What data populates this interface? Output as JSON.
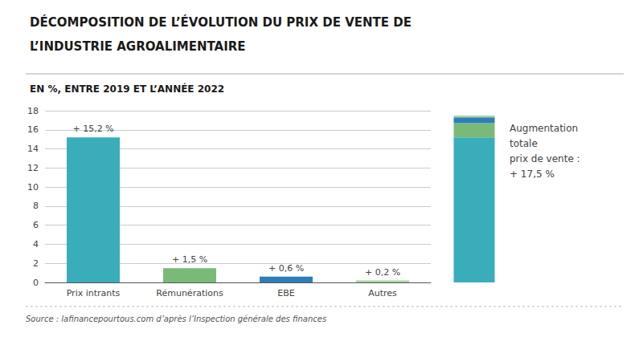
{
  "chart_data": [
    {
      "type": "bar",
      "title": "DÉCOMPOSITION DE L’ÉVOLUTION DU PRIX DE VENTE DE\nL’INDUSTRIE AGROALIMENTAIRE",
      "subtitle": "EN %, ENTRE 2019 ET L’ANNÉE 2022",
      "source": "Source : lafinancepourtous.com d’après l’Inspection générale des finances",
      "categories": [
        "Prix intrants",
        "Rémunérations",
        "EBE",
        "Autres"
      ],
      "values": [
        15.2,
        1.5,
        0.6,
        0.2
      ],
      "value_labels": [
        "+ 15,2 %",
        "+ 1,5 %",
        "+ 0,6 %",
        "+ 0,2 %"
      ],
      "colors": [
        "#3aadbb",
        "#7aba78",
        "#2e7fb8",
        "#a8d5a2"
      ],
      "data_labels": true,
      "ylim": [
        0,
        18
      ],
      "yticks": [
        0,
        2,
        4,
        6,
        8,
        10,
        12,
        14,
        16,
        18
      ],
      "grid": true
    },
    {
      "type": "bar",
      "stacked": true,
      "categories": [
        null
      ],
      "series": [
        {
          "color": "#3aadbb",
          "values": [
            15.2
          ]
        },
        {
          "color": "#7aba78",
          "values": [
            1.5
          ]
        },
        {
          "color": "#2e7fb8",
          "values": [
            0.6
          ]
        },
        {
          "color": "#a8d5a2",
          "values": [
            0.2
          ]
        }
      ],
      "ylim": [
        0,
        18
      ],
      "tick_labels": false,
      "grid": false,
      "annotation": "Augmentation\ntotale\nprix de vente :\n+ 17,5 %"
    }
  ]
}
